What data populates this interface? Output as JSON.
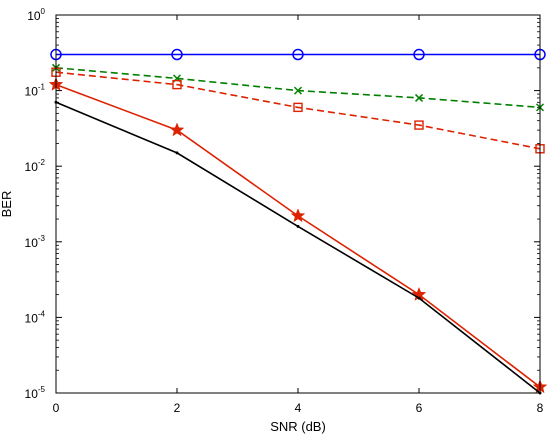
{
  "chart_data": {
    "type": "line",
    "title": "",
    "xlabel": "SNR (dB)",
    "ylabel": "BER",
    "xlim": [
      0,
      8
    ],
    "ylim": [
      1e-05,
      1
    ],
    "yscale": "log",
    "grid": false,
    "legend": "none",
    "x": [
      0,
      2,
      4,
      6,
      8
    ],
    "x_ticks": [
      "0",
      "2",
      "4",
      "6",
      "8"
    ],
    "y_ticks": [
      {
        "base": "10",
        "exp": "0"
      },
      {
        "base": "10",
        "exp": "-1"
      },
      {
        "base": "10",
        "exp": "-2"
      },
      {
        "base": "10",
        "exp": "-3"
      },
      {
        "base": "10",
        "exp": "-4"
      },
      {
        "base": "10",
        "exp": "-5"
      }
    ],
    "series": [
      {
        "color": "#0000ff",
        "dash": "solid",
        "marker": "circle",
        "values": [
          0.3,
          0.3,
          0.3,
          0.3,
          0.3
        ]
      },
      {
        "color": "#008000",
        "dash": "dashed",
        "marker": "x",
        "values": [
          0.2,
          0.145,
          0.1,
          0.08,
          0.06
        ]
      },
      {
        "color": "#dd2200",
        "dash": "dashed",
        "marker": "square",
        "values": [
          0.175,
          0.12,
          0.06,
          0.035,
          0.017
        ]
      },
      {
        "color": "#dd2200",
        "dash": "solid",
        "marker": "star",
        "values": [
          0.12,
          0.03,
          0.0022,
          0.0002,
          1.2e-05
        ]
      },
      {
        "color": "#000000",
        "dash": "solid",
        "marker": "dot",
        "values": [
          0.07,
          0.015,
          0.0016,
          0.00018,
          1e-05
        ]
      }
    ]
  }
}
